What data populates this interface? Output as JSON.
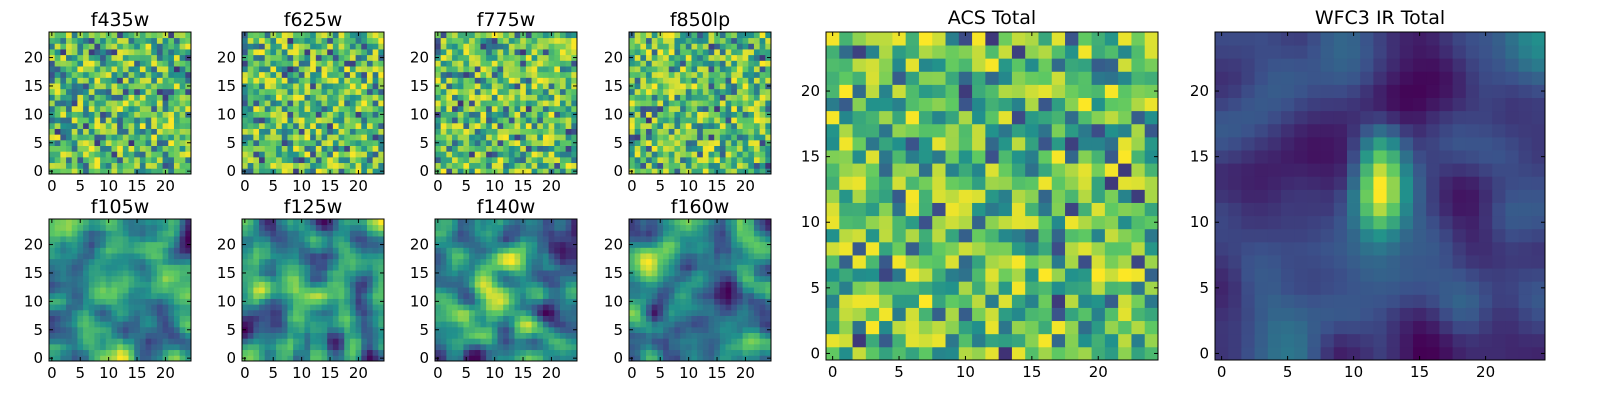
{
  "figure": {
    "colormap": "viridis",
    "colormap_stops": [
      "#440154",
      "#3b528b",
      "#21918c",
      "#5ec962",
      "#fde725"
    ]
  },
  "chart_data": [
    {
      "type": "heatmap",
      "title": "f435w",
      "grid_size": [
        25,
        25
      ],
      "xlim": [
        -0.5,
        24.5
      ],
      "ylim": [
        -0.5,
        24.5
      ],
      "xticks": [
        0,
        5,
        10,
        15,
        20
      ],
      "yticks": [
        0,
        5,
        10,
        15,
        20
      ],
      "value_range": [
        0,
        1
      ],
      "texture": "noisy",
      "seed": 11
    },
    {
      "type": "heatmap",
      "title": "f625w",
      "grid_size": [
        25,
        25
      ],
      "xlim": [
        -0.5,
        24.5
      ],
      "ylim": [
        -0.5,
        24.5
      ],
      "xticks": [
        0,
        5,
        10,
        15,
        20
      ],
      "yticks": [
        0,
        5,
        10,
        15,
        20
      ],
      "value_range": [
        0,
        1
      ],
      "texture": "noisy",
      "seed": 23
    },
    {
      "type": "heatmap",
      "title": "f775w",
      "grid_size": [
        25,
        25
      ],
      "xlim": [
        -0.5,
        24.5
      ],
      "ylim": [
        -0.5,
        24.5
      ],
      "xticks": [
        0,
        5,
        10,
        15,
        20
      ],
      "yticks": [
        0,
        5,
        10,
        15,
        20
      ],
      "value_range": [
        0,
        1
      ],
      "texture": "noisy",
      "seed": 37
    },
    {
      "type": "heatmap",
      "title": "f850lp",
      "grid_size": [
        25,
        25
      ],
      "xlim": [
        -0.5,
        24.5
      ],
      "ylim": [
        -0.5,
        24.5
      ],
      "xticks": [
        0,
        5,
        10,
        15,
        20
      ],
      "yticks": [
        0,
        5,
        10,
        15,
        20
      ],
      "value_range": [
        0,
        1
      ],
      "texture": "noisy",
      "seed": 41
    },
    {
      "type": "heatmap",
      "title": "f105w",
      "grid_size": [
        25,
        25
      ],
      "xlim": [
        -0.5,
        24.5
      ],
      "ylim": [
        -0.5,
        24.5
      ],
      "xticks": [
        0,
        5,
        10,
        15,
        20
      ],
      "yticks": [
        0,
        5,
        10,
        15,
        20
      ],
      "value_range": [
        0,
        1
      ],
      "texture": "smooth",
      "seed": 53
    },
    {
      "type": "heatmap",
      "title": "f125w",
      "grid_size": [
        25,
        25
      ],
      "xlim": [
        -0.5,
        24.5
      ],
      "ylim": [
        -0.5,
        24.5
      ],
      "xticks": [
        0,
        5,
        10,
        15,
        20
      ],
      "yticks": [
        0,
        5,
        10,
        15,
        20
      ],
      "value_range": [
        0,
        1
      ],
      "texture": "smooth",
      "seed": 67
    },
    {
      "type": "heatmap",
      "title": "f140w",
      "grid_size": [
        25,
        25
      ],
      "xlim": [
        -0.5,
        24.5
      ],
      "ylim": [
        -0.5,
        24.5
      ],
      "xticks": [
        0,
        5,
        10,
        15,
        20
      ],
      "yticks": [
        0,
        5,
        10,
        15,
        20
      ],
      "value_range": [
        0,
        1
      ],
      "texture": "smooth",
      "seed": 71
    },
    {
      "type": "heatmap",
      "title": "f160w",
      "grid_size": [
        25,
        25
      ],
      "xlim": [
        -0.5,
        24.5
      ],
      "ylim": [
        -0.5,
        24.5
      ],
      "xticks": [
        0,
        5,
        10,
        15,
        20
      ],
      "yticks": [
        0,
        5,
        10,
        15,
        20
      ],
      "value_range": [
        0,
        1
      ],
      "texture": "smooth",
      "seed": 83
    },
    {
      "type": "heatmap",
      "title": "ACS Total",
      "grid_size": [
        25,
        25
      ],
      "xlim": [
        -0.5,
        24.5
      ],
      "ylim": [
        -0.5,
        24.5
      ],
      "xticks": [
        0,
        5,
        10,
        15,
        20
      ],
      "yticks": [
        0,
        5,
        10,
        15,
        20
      ],
      "value_range": [
        0,
        1
      ],
      "texture": "noisy",
      "seed": 97
    },
    {
      "type": "heatmap",
      "title": "WFC3 IR Total",
      "grid_size": [
        25,
        25
      ],
      "xlim": [
        -0.5,
        24.5
      ],
      "ylim": [
        -0.5,
        24.5
      ],
      "xticks": [
        0,
        5,
        10,
        15,
        20
      ],
      "yticks": [
        0,
        5,
        10,
        15,
        20
      ],
      "value_range": [
        0,
        1
      ],
      "texture": "blob",
      "seed": 101
    }
  ]
}
